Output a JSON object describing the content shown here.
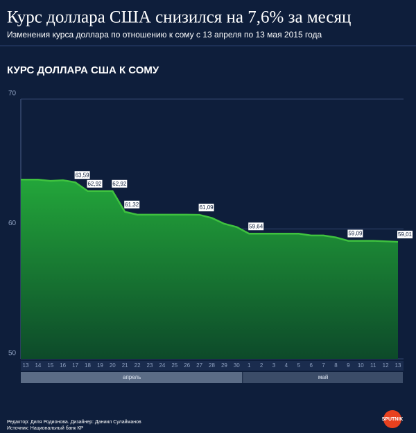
{
  "header": {
    "title": "Курс доллара США снизился на 7,6% за месяц",
    "subtitle": "Изменения курса доллара по отношению к сому с 13 апреля по 13 мая 2015 года"
  },
  "chart_data": {
    "type": "area",
    "title": "КУРС ДОЛЛАРА США К СОМУ",
    "categories": [
      "13",
      "14",
      "15",
      "16",
      "17",
      "18",
      "19",
      "20",
      "21",
      "22",
      "23",
      "24",
      "25",
      "26",
      "27",
      "28",
      "29",
      "30",
      "1",
      "2",
      "3",
      "4",
      "5",
      "6",
      "7",
      "8",
      "9",
      "10",
      "11",
      "12",
      "13"
    ],
    "months": [
      "апрель",
      "май"
    ],
    "values": [
      63.8,
      63.8,
      63.7,
      63.75,
      63.59,
      62.92,
      62.92,
      62.92,
      61.32,
      61.1,
      61.1,
      61.1,
      61.1,
      61.1,
      61.09,
      60.85,
      60.4,
      60.15,
      59.64,
      59.64,
      59.64,
      59.64,
      59.64,
      59.5,
      59.5,
      59.35,
      59.09,
      59.09,
      59.09,
      59.05,
      59.01
    ],
    "value_labels": [
      null,
      null,
      null,
      null,
      "63,59",
      "62,92",
      null,
      "62,92",
      "61,32",
      null,
      null,
      null,
      null,
      null,
      "61,09",
      null,
      null,
      null,
      "59,64",
      null,
      null,
      null,
      null,
      null,
      null,
      null,
      "59,09",
      null,
      null,
      null,
      "59,01"
    ],
    "color": "#3fc23f",
    "ylim": [
      50,
      70
    ],
    "yticks": [
      50,
      60,
      70
    ],
    "grid": true
  },
  "footer": {
    "credits": "Редактор: Диля Родионова. Дизайнер: Даниил Сулайманов",
    "source": "Источник: Национальный банк КР",
    "logo": "SPUTNIK"
  }
}
